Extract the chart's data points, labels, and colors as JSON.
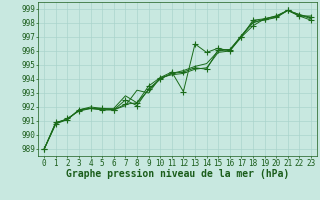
{
  "xlabel": "Graphe pression niveau de la mer (hPa)",
  "ylim": [
    988.5,
    999.5
  ],
  "xlim": [
    -0.5,
    23.5
  ],
  "yticks": [
    989,
    990,
    991,
    992,
    993,
    994,
    995,
    996,
    997,
    998,
    999
  ],
  "xticks": [
    0,
    1,
    2,
    3,
    4,
    5,
    6,
    7,
    8,
    9,
    10,
    11,
    12,
    13,
    14,
    15,
    16,
    17,
    18,
    19,
    20,
    21,
    22,
    23
  ],
  "bg_color": "#c8e8e0",
  "grid_color": "#aad4cc",
  "line_color": "#1a6b1a",
  "lines": [
    [
      989.0,
      990.9,
      991.1,
      991.8,
      991.9,
      991.9,
      991.8,
      992.2,
      992.3,
      993.5,
      994.1,
      994.5,
      993.1,
      996.5,
      995.9,
      996.2,
      996.0,
      997.0,
      998.2,
      998.3,
      998.4,
      998.9,
      998.6,
      998.4
    ],
    [
      989.0,
      990.8,
      991.2,
      991.7,
      991.9,
      991.8,
      991.8,
      992.5,
      992.1,
      993.3,
      994.0,
      994.4,
      994.5,
      994.8,
      994.7,
      996.1,
      996.1,
      997.0,
      997.8,
      998.3,
      998.5,
      998.9,
      998.5,
      998.2
    ],
    [
      989.0,
      990.8,
      991.1,
      991.8,
      992.0,
      991.9,
      991.9,
      992.8,
      992.3,
      993.2,
      994.0,
      994.4,
      994.6,
      994.9,
      995.1,
      996.0,
      996.1,
      997.1,
      998.0,
      998.3,
      998.5,
      998.9,
      998.5,
      998.5
    ],
    [
      989.0,
      990.9,
      991.1,
      991.8,
      991.9,
      991.8,
      991.8,
      992.1,
      993.2,
      993.0,
      994.1,
      994.3,
      994.4,
      994.7,
      994.8,
      995.9,
      996.0,
      997.1,
      998.1,
      998.2,
      998.4,
      998.9,
      998.6,
      998.3
    ]
  ],
  "markers": [
    true,
    true,
    false,
    false
  ],
  "font_color": "#1a5c1a",
  "tick_fontsize": 5.5,
  "label_fontsize": 7.0
}
